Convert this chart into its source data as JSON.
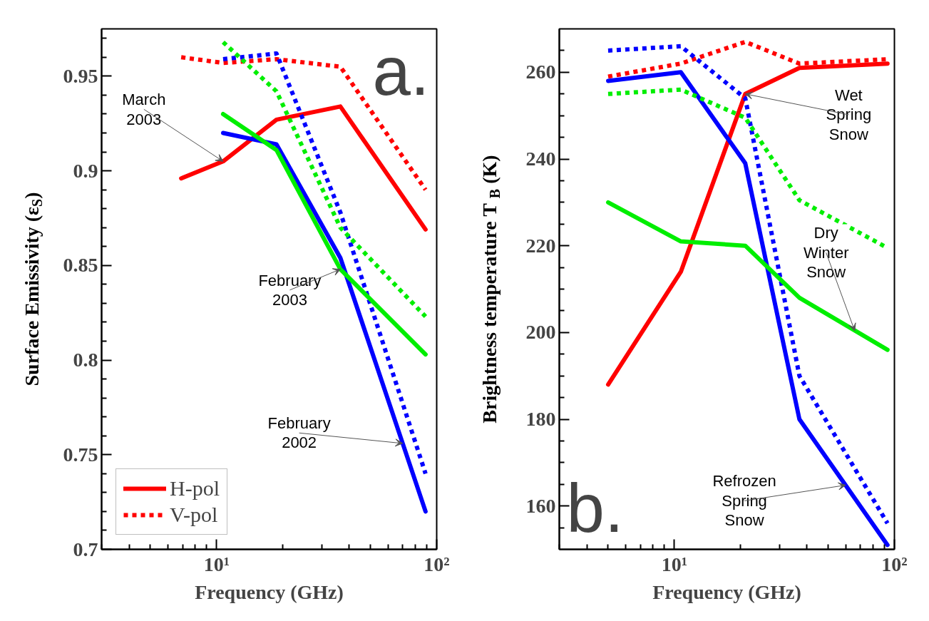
{
  "chart_data": [
    {
      "type": "line",
      "xlabel": "Frequency (GHz)",
      "ylabel": "Surface Emissivity (ε$_{S}$)",
      "x": [
        6.9,
        10.7,
        18.7,
        36.5,
        89
      ],
      "xlim": [
        3,
        100
      ],
      "log": "x",
      "xticks": [
        {
          "value": 3,
          "label": null
        },
        {
          "value": 4,
          "label": null
        },
        {
          "value": 5,
          "label": null
        },
        {
          "value": 6,
          "label": null
        },
        {
          "value": 7,
          "label": null
        },
        {
          "value": 8,
          "label": null
        },
        {
          "value": 9,
          "label": null
        },
        {
          "value": 10,
          "label": "10¹"
        },
        {
          "value": 20,
          "label": null
        },
        {
          "value": 30,
          "label": null
        },
        {
          "value": 40,
          "label": null
        },
        {
          "value": 50,
          "label": null
        },
        {
          "value": 60,
          "label": null
        },
        {
          "value": 70,
          "label": null
        },
        {
          "value": 80,
          "label": null
        },
        {
          "value": 90,
          "label": null
        },
        {
          "value": 100,
          "label": "10²"
        }
      ],
      "ylim": [
        0.7,
        0.975
      ],
      "yticks": [
        0.7,
        {
          "value": 0.71,
          "label": null
        },
        {
          "value": 0.72,
          "label": null
        },
        {
          "value": 0.73,
          "label": null
        },
        {
          "value": 0.74,
          "label": null
        },
        0.75,
        {
          "value": 0.76,
          "label": null
        },
        {
          "value": 0.77,
          "label": null
        },
        {
          "value": 0.78,
          "label": null
        },
        {
          "value": 0.79,
          "label": null
        },
        0.8,
        {
          "value": 0.81,
          "label": null
        },
        {
          "value": 0.82,
          "label": null
        },
        {
          "value": 0.83,
          "label": null
        },
        {
          "value": 0.84,
          "label": null
        },
        0.85,
        {
          "value": 0.86,
          "label": null
        },
        {
          "value": 0.87,
          "label": null
        },
        {
          "value": 0.88,
          "label": null
        },
        {
          "value": 0.89,
          "label": null
        },
        0.9,
        {
          "value": 0.91,
          "label": null
        },
        {
          "value": 0.92,
          "label": null
        },
        {
          "value": 0.93,
          "label": null
        },
        {
          "value": 0.94,
          "label": null
        },
        0.95,
        {
          "value": 0.96,
          "label": null
        },
        {
          "value": 0.97,
          "label": null
        }
      ],
      "grid": false,
      "legend": "bottom left",
      "series": [
        {
          "name": "H-pol",
          "color": "#ff0000",
          "line_style": "solid",
          "values": [
            0.896,
            0.905,
            0.927,
            0.934,
            0.869
          ]
        },
        {
          "name": "V-pol",
          "color": "#ff0000",
          "line_style": "dotted",
          "values": [
            0.96,
            0.957,
            0.959,
            0.955,
            0.89
          ]
        },
        {
          "color": "#0000ff",
          "line_style": "solid",
          "values": [
            null,
            0.92,
            0.914,
            0.854,
            0.72
          ]
        },
        {
          "color": "#0000ff",
          "line_style": "dotted",
          "values": [
            null,
            0.959,
            0.962,
            0.878,
            0.74
          ]
        },
        {
          "color": "#00ee00",
          "line_style": "solid",
          "values": [
            null,
            0.93,
            0.911,
            0.848,
            0.803
          ]
        },
        {
          "color": "#00ee00",
          "line_style": "dotted",
          "values": [
            null,
            0.968,
            0.942,
            0.87,
            0.823
          ]
        }
      ],
      "annotations": [
        "a.",
        {
          "text": "March\n2003",
          "x": 10.7,
          "y": 0.905
        },
        {
          "text": "February\n2003",
          "x": 36.5,
          "y": 0.848
        },
        {
          "text": "February\n2002",
          "x": 70,
          "y": 0.756
        }
      ]
    },
    {
      "type": "line",
      "xlabel": "Frequency (GHz)",
      "ylabel": "Brightness temperature  T$_{B}$ (K)",
      "x": [
        5,
        10.7,
        21,
        37,
        93
      ],
      "xlim": [
        3,
        100
      ],
      "log": "x",
      "xticks": [
        {
          "value": 3,
          "label": null
        },
        {
          "value": 4,
          "label": null
        },
        {
          "value": 5,
          "label": null
        },
        {
          "value": 6,
          "label": null
        },
        {
          "value": 7,
          "label": null
        },
        {
          "value": 8,
          "label": null
        },
        {
          "value": 9,
          "label": null
        },
        {
          "value": 10,
          "label": "10¹"
        },
        {
          "value": 20,
          "label": null
        },
        {
          "value": 30,
          "label": null
        },
        {
          "value": 40,
          "label": null
        },
        {
          "value": 50,
          "label": null
        },
        {
          "value": 60,
          "label": null
        },
        {
          "value": 70,
          "label": null
        },
        {
          "value": 80,
          "label": null
        },
        {
          "value": 90,
          "label": null
        },
        {
          "value": 100,
          "label": "10²"
        }
      ],
      "ylim": [
        150,
        270
      ],
      "yticks": [
        {
          "value": 155,
          "label": null
        },
        160,
        {
          "value": 165,
          "label": null
        },
        {
          "value": 170,
          "label": null
        },
        {
          "value": 175,
          "label": null
        },
        180,
        {
          "value": 185,
          "label": null
        },
        {
          "value": 190,
          "label": null
        },
        {
          "value": 195,
          "label": null
        },
        200,
        {
          "value": 205,
          "label": null
        },
        {
          "value": 210,
          "label": null
        },
        {
          "value": 215,
          "label": null
        },
        220,
        {
          "value": 225,
          "label": null
        },
        {
          "value": 230,
          "label": null
        },
        {
          "value": 235,
          "label": null
        },
        240,
        {
          "value": 245,
          "label": null
        },
        {
          "value": 250,
          "label": null
        },
        {
          "value": 255,
          "label": null
        },
        260,
        {
          "value": 265,
          "label": null
        }
      ],
      "grid": false,
      "series": [
        {
          "color": "#ff0000",
          "line_style": "solid",
          "values": [
            188,
            214,
            255,
            261,
            262
          ]
        },
        {
          "color": "#ff0000",
          "line_style": "dotted",
          "values": [
            259,
            262,
            267,
            262,
            263
          ]
        },
        {
          "color": "#0000ff",
          "line_style": "solid",
          "values": [
            258,
            260,
            239,
            180,
            151
          ]
        },
        {
          "color": "#0000ff",
          "line_style": "dotted",
          "values": [
            265,
            266,
            254,
            190,
            156
          ]
        },
        {
          "color": "#00ee00",
          "line_style": "solid",
          "values": [
            230,
            221,
            220,
            208,
            196
          ]
        },
        {
          "color": "#00ee00",
          "line_style": "dotted",
          "values": [
            255,
            256,
            249.5,
            230.5,
            219.5
          ]
        }
      ],
      "annotations": [
        "b.",
        {
          "text": "Wet\nSpring\nSnow",
          "x": 21,
          "y": 255
        },
        {
          "text": "Dry\nWinter\nSnow",
          "x": 66,
          "y": 200.4
        },
        {
          "text": "Refrozen\nSpring\nSnow",
          "x": 60,
          "y": 164.8
        }
      ]
    }
  ]
}
